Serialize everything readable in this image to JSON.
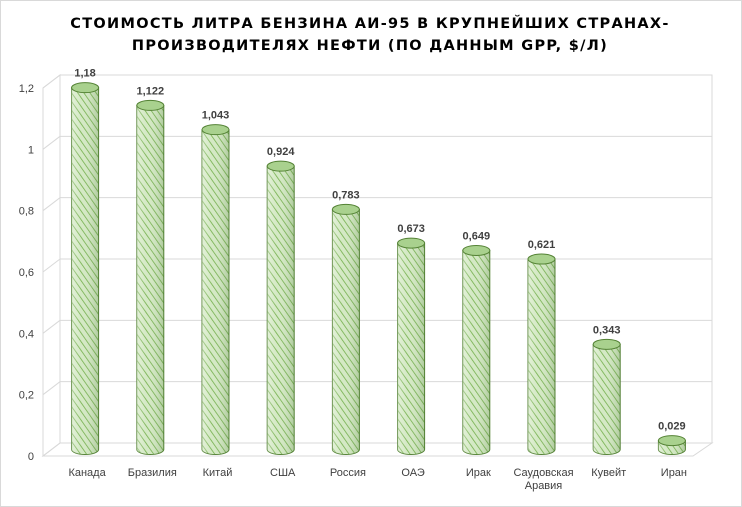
{
  "chart_data": {
    "type": "bar",
    "title_lines": [
      "СТОИМОСТЬ ЛИТРА БЕНЗИНА АИ-95 В КРУПНЕЙШИХ СТРАНАХ-",
      "ПРОИЗВОДИТЕЛЯХ НЕФТИ (ПО ДАННЫМ GPP, $/Л)"
    ],
    "categories": [
      [
        "Канада"
      ],
      [
        "Бразилия"
      ],
      [
        "Китай"
      ],
      [
        "США"
      ],
      [
        "Россия"
      ],
      [
        "ОАЭ"
      ],
      [
        "Ирак"
      ],
      [
        "Саудовская",
        "Аравия"
      ],
      [
        "Кувейт"
      ],
      [
        "Иран"
      ]
    ],
    "values": [
      1.18,
      1.122,
      1.043,
      0.924,
      0.783,
      0.673,
      0.649,
      0.621,
      0.343,
      0.029
    ],
    "value_labels": [
      "1,18",
      "1,122",
      "1,043",
      "0,924",
      "0,783",
      "0,673",
      "0,649",
      "0,621",
      "0,343",
      "0,029"
    ],
    "y_ticks": [
      0,
      0.2,
      0.4,
      0.6,
      0.8,
      1,
      1.2
    ],
    "y_tick_labels": [
      "0",
      "0,2",
      "0,4",
      "0,6",
      "0,8",
      "1",
      "1,2"
    ],
    "ylim": [
      0,
      1.2
    ],
    "grid": true,
    "legend": "none",
    "colors": {
      "bar_fill": "#c6e0b4",
      "bar_stripe": "#70ad47",
      "bar_top": "#a9d18e",
      "bar_outline": "#548235",
      "gridline": "#d9d9d9",
      "axis_text": "#404040",
      "label_text": "#404040"
    }
  }
}
